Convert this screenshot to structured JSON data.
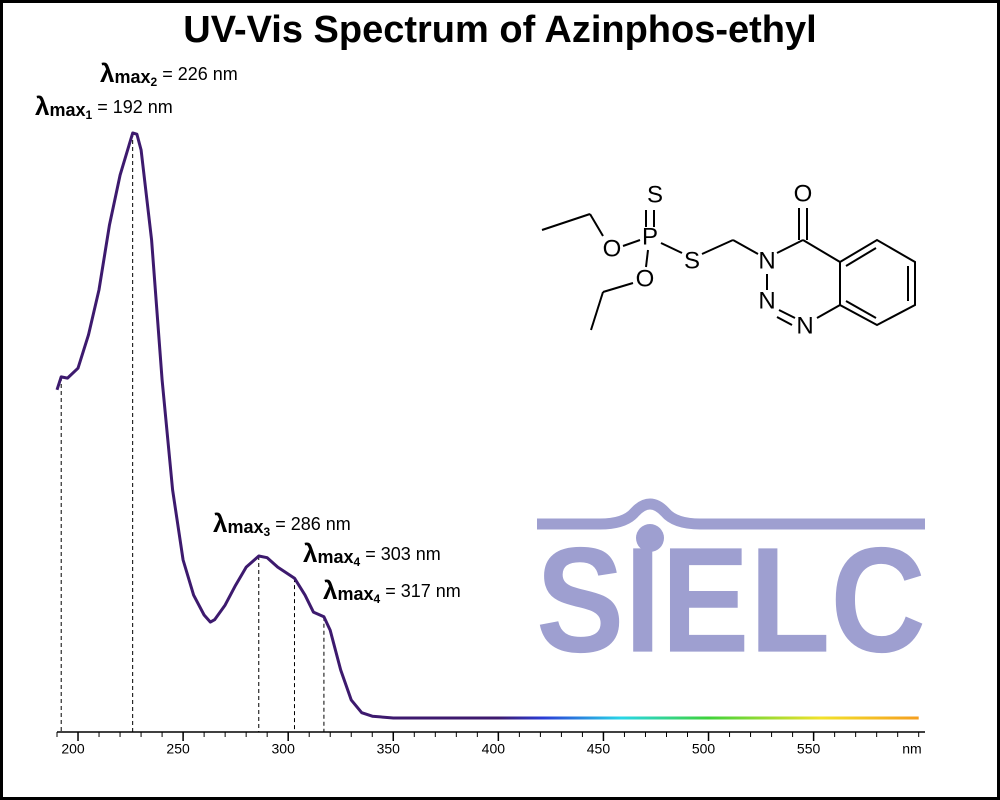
{
  "chart_data": {
    "type": "line",
    "title": "UV-Vis Spectrum of Azinphos-ethyl",
    "xlabel": "nm",
    "x": [
      190,
      192,
      195,
      200,
      205,
      210,
      215,
      220,
      225,
      226,
      228,
      230,
      235,
      240,
      245,
      250,
      255,
      260,
      263,
      265,
      270,
      275,
      280,
      286,
      290,
      295,
      303,
      308,
      312,
      317,
      320,
      325,
      330,
      335,
      340,
      350,
      400,
      450,
      500,
      550,
      600
    ],
    "values": [
      0.561,
      0.583,
      0.581,
      0.598,
      0.655,
      0.732,
      0.843,
      0.928,
      0.988,
      1.0,
      0.998,
      0.971,
      0.817,
      0.578,
      0.39,
      0.27,
      0.21,
      0.176,
      0.164,
      0.168,
      0.193,
      0.227,
      0.258,
      0.277,
      0.274,
      0.258,
      0.239,
      0.21,
      0.181,
      0.173,
      0.15,
      0.082,
      0.031,
      0.009,
      0.003,
      0,
      0,
      0,
      0,
      0,
      0
    ],
    "color": "#3d1a6e",
    "xlim": [
      190,
      603
    ],
    "ylim": [
      0,
      1
    ],
    "xticks": [
      200,
      250,
      300,
      350,
      400,
      450,
      500,
      550
    ],
    "xminorticks": [
      190,
      200,
      210,
      220,
      230,
      240,
      250,
      260,
      270,
      280,
      290,
      300,
      310,
      320,
      330,
      340,
      350,
      360,
      370,
      380,
      390,
      400,
      410,
      420,
      430,
      440,
      450,
      460,
      470,
      480,
      490,
      500,
      510,
      520,
      530,
      540,
      550,
      560,
      570,
      580,
      590,
      600
    ],
    "annotations": [
      {
        "x": 192,
        "symbol": "λ",
        "subscript": "max",
        "index": "1",
        "text": " = 192 nm"
      },
      {
        "x": 226,
        "symbol": "λ",
        "subscript": "max",
        "index": "2",
        "text": " = 226 nm"
      },
      {
        "x": 286,
        "symbol": "λ",
        "subscript": "max",
        "index": "3",
        "text": " = 286 nm"
      },
      {
        "x": 303,
        "symbol": "λ",
        "subscript": "max",
        "index": "4",
        "text": " = 303 nm"
      },
      {
        "x": 317,
        "symbol": "λ",
        "subscript": "max",
        "index": "4",
        "text": " = 317 nm"
      }
    ]
  },
  "logo": "SIELC",
  "molecule": {
    "atoms": [
      "S",
      "P",
      "O",
      "O",
      "S",
      "N",
      "N",
      "N",
      "O"
    ]
  }
}
